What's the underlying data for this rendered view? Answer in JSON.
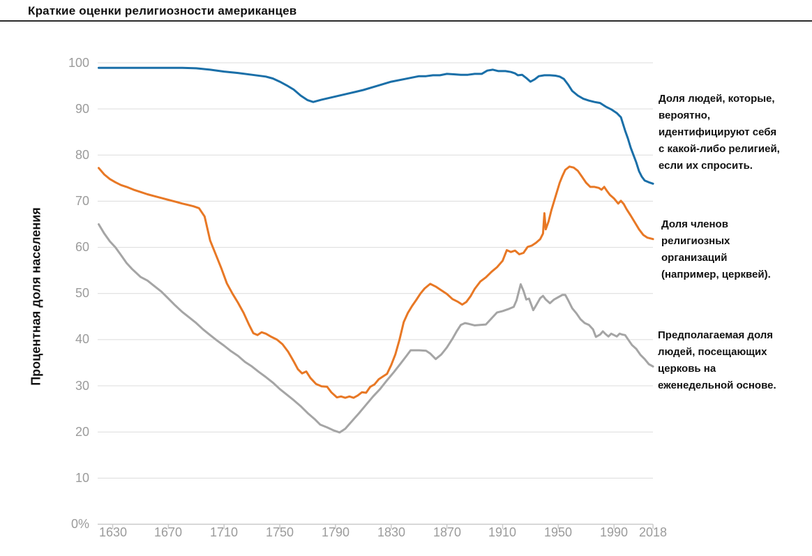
{
  "page": {
    "title": "Краткие оценки религиозности американцев"
  },
  "chart_data": {
    "type": "line",
    "title": "Краткие оценки религиозности американцев",
    "ylabel": "Процентная доля населения",
    "xlabel": "",
    "xlim": [
      1618,
      2020
    ],
    "ylim": [
      0,
      100
    ],
    "grid": true,
    "legend_position": "right-annotations",
    "y_ticks": [
      100,
      90,
      80,
      70,
      60,
      50,
      40,
      30,
      20,
      10
    ],
    "y_zero_label": "0%",
    "x_ticks": [
      1630,
      1670,
      1710,
      1750,
      1790,
      1830,
      1870,
      1910,
      1950,
      1990,
      2018
    ],
    "colors": {
      "grid": "#dcdcdc",
      "axis": "#c9c9c9",
      "tick_text": "#9b9b9b",
      "title_text": "#111111",
      "identification_line": "#1a6fa8",
      "membership_line": "#e87825",
      "attendance_line": "#a5a5a5"
    },
    "series": [
      {
        "name": "religious-identification",
        "label": "Доля людей, которые, вероятно, идентифицируют себя с какой-либо религией, если их спросить.",
        "color": "#1a6fa8",
        "points": [
          [
            1620,
            98.9
          ],
          [
            1640,
            98.9
          ],
          [
            1660,
            98.9
          ],
          [
            1680,
            98.9
          ],
          [
            1690,
            98.8
          ],
          [
            1700,
            98.5
          ],
          [
            1710,
            98.1
          ],
          [
            1720,
            97.8
          ],
          [
            1730,
            97.4
          ],
          [
            1740,
            97.0
          ],
          [
            1745,
            96.6
          ],
          [
            1750,
            95.9
          ],
          [
            1755,
            95.1
          ],
          [
            1760,
            94.2
          ],
          [
            1765,
            92.9
          ],
          [
            1770,
            91.9
          ],
          [
            1774,
            91.5
          ],
          [
            1780,
            92.0
          ],
          [
            1790,
            92.7
          ],
          [
            1800,
            93.4
          ],
          [
            1810,
            94.1
          ],
          [
            1820,
            95.0
          ],
          [
            1830,
            95.9
          ],
          [
            1840,
            96.5
          ],
          [
            1850,
            97.1
          ],
          [
            1855,
            97.1
          ],
          [
            1860,
            97.3
          ],
          [
            1865,
            97.3
          ],
          [
            1870,
            97.6
          ],
          [
            1875,
            97.5
          ],
          [
            1880,
            97.4
          ],
          [
            1885,
            97.4
          ],
          [
            1890,
            97.6
          ],
          [
            1895,
            97.6
          ],
          [
            1899,
            98.3
          ],
          [
            1903,
            98.5
          ],
          [
            1907,
            98.2
          ],
          [
            1912,
            98.2
          ],
          [
            1916,
            98.0
          ],
          [
            1919,
            97.7
          ],
          [
            1921,
            97.3
          ],
          [
            1924,
            97.4
          ],
          [
            1927,
            96.7
          ],
          [
            1930,
            95.9
          ],
          [
            1933,
            96.4
          ],
          [
            1936,
            97.1
          ],
          [
            1940,
            97.3
          ],
          [
            1944,
            97.3
          ],
          [
            1948,
            97.2
          ],
          [
            1951,
            97.0
          ],
          [
            1954,
            96.5
          ],
          [
            1957,
            95.3
          ],
          [
            1960,
            93.9
          ],
          [
            1964,
            92.9
          ],
          [
            1968,
            92.2
          ],
          [
            1972,
            91.8
          ],
          [
            1976,
            91.5
          ],
          [
            1980,
            91.3
          ],
          [
            1984,
            90.5
          ],
          [
            1988,
            89.9
          ],
          [
            1992,
            89.1
          ],
          [
            1995,
            88.2
          ],
          [
            1998,
            85.3
          ],
          [
            2000,
            83.6
          ],
          [
            2002,
            81.6
          ],
          [
            2004,
            80.0
          ],
          [
            2006,
            78.4
          ],
          [
            2008,
            76.5
          ],
          [
            2010,
            75.3
          ],
          [
            2012,
            74.5
          ],
          [
            2015,
            74.1
          ],
          [
            2018,
            73.8
          ]
        ]
      },
      {
        "name": "membership",
        "label": "Доля членов религиозных организаций (например, церквей).",
        "color": "#e87825",
        "points": [
          [
            1620,
            77.2
          ],
          [
            1624,
            75.8
          ],
          [
            1628,
            74.8
          ],
          [
            1632,
            74.1
          ],
          [
            1636,
            73.5
          ],
          [
            1640,
            73.1
          ],
          [
            1645,
            72.5
          ],
          [
            1650,
            72.0
          ],
          [
            1655,
            71.5
          ],
          [
            1660,
            71.1
          ],
          [
            1665,
            70.7
          ],
          [
            1670,
            70.3
          ],
          [
            1675,
            69.9
          ],
          [
            1680,
            69.5
          ],
          [
            1684,
            69.2
          ],
          [
            1688,
            68.9
          ],
          [
            1692,
            68.5
          ],
          [
            1696,
            66.7
          ],
          [
            1700,
            61.5
          ],
          [
            1704,
            58.5
          ],
          [
            1708,
            55.5
          ],
          [
            1712,
            52.2
          ],
          [
            1716,
            50.0
          ],
          [
            1720,
            48.0
          ],
          [
            1724,
            45.8
          ],
          [
            1728,
            43.2
          ],
          [
            1731,
            41.4
          ],
          [
            1734,
            41.0
          ],
          [
            1737,
            41.6
          ],
          [
            1740,
            41.3
          ],
          [
            1744,
            40.6
          ],
          [
            1748,
            40.0
          ],
          [
            1752,
            39.0
          ],
          [
            1756,
            37.4
          ],
          [
            1760,
            35.3
          ],
          [
            1763,
            33.6
          ],
          [
            1766,
            32.7
          ],
          [
            1769,
            33.1
          ],
          [
            1772,
            31.7
          ],
          [
            1776,
            30.4
          ],
          [
            1780,
            29.9
          ],
          [
            1784,
            29.8
          ],
          [
            1787,
            28.6
          ],
          [
            1791,
            27.5
          ],
          [
            1794,
            27.7
          ],
          [
            1797,
            27.4
          ],
          [
            1800,
            27.7
          ],
          [
            1803,
            27.4
          ],
          [
            1806,
            27.9
          ],
          [
            1809,
            28.6
          ],
          [
            1812,
            28.5
          ],
          [
            1815,
            29.8
          ],
          [
            1818,
            30.3
          ],
          [
            1821,
            31.4
          ],
          [
            1824,
            32.0
          ],
          [
            1827,
            32.6
          ],
          [
            1830,
            34.5
          ],
          [
            1833,
            36.8
          ],
          [
            1836,
            40.0
          ],
          [
            1839,
            43.8
          ],
          [
            1842,
            45.8
          ],
          [
            1845,
            47.3
          ],
          [
            1848,
            48.6
          ],
          [
            1851,
            50.0
          ],
          [
            1854,
            51.1
          ],
          [
            1858,
            52.1
          ],
          [
            1862,
            51.5
          ],
          [
            1866,
            50.7
          ],
          [
            1870,
            49.9
          ],
          [
            1874,
            48.8
          ],
          [
            1878,
            48.2
          ],
          [
            1881,
            47.6
          ],
          [
            1884,
            48.2
          ],
          [
            1887,
            49.4
          ],
          [
            1890,
            51.0
          ],
          [
            1894,
            52.6
          ],
          [
            1898,
            53.5
          ],
          [
            1902,
            54.7
          ],
          [
            1906,
            55.7
          ],
          [
            1910,
            57.1
          ],
          [
            1913,
            59.4
          ],
          [
            1916,
            59.0
          ],
          [
            1919,
            59.3
          ],
          [
            1922,
            58.5
          ],
          [
            1925,
            58.8
          ],
          [
            1928,
            60.1
          ],
          [
            1931,
            60.4
          ],
          [
            1934,
            61.0
          ],
          [
            1937,
            61.8
          ],
          [
            1939,
            63.0
          ],
          [
            1940,
            67.4
          ],
          [
            1941,
            63.9
          ],
          [
            1943,
            65.6
          ],
          [
            1945,
            68.0
          ],
          [
            1947,
            70.0
          ],
          [
            1949,
            72.0
          ],
          [
            1951,
            74.0
          ],
          [
            1953,
            75.5
          ],
          [
            1955,
            76.8
          ],
          [
            1958,
            77.5
          ],
          [
            1961,
            77.3
          ],
          [
            1964,
            76.6
          ],
          [
            1967,
            75.3
          ],
          [
            1970,
            74.0
          ],
          [
            1973,
            73.1
          ],
          [
            1976,
            73.1
          ],
          [
            1979,
            72.9
          ],
          [
            1981,
            72.5
          ],
          [
            1983,
            73.1
          ],
          [
            1985,
            72.2
          ],
          [
            1987,
            71.4
          ],
          [
            1990,
            70.6
          ],
          [
            1993,
            69.5
          ],
          [
            1995,
            70.1
          ],
          [
            1997,
            69.4
          ],
          [
            1999,
            68.3
          ],
          [
            2002,
            66.9
          ],
          [
            2005,
            65.4
          ],
          [
            2008,
            63.9
          ],
          [
            2011,
            62.7
          ],
          [
            2014,
            62.1
          ],
          [
            2018,
            61.8
          ]
        ]
      },
      {
        "name": "weekly-attendance",
        "label": "Предполагаемая доля людей, посещающих церковь на еженедельной основе.",
        "color": "#a5a5a5",
        "points": [
          [
            1620,
            65.0
          ],
          [
            1624,
            63.0
          ],
          [
            1628,
            61.3
          ],
          [
            1632,
            60.0
          ],
          [
            1636,
            58.3
          ],
          [
            1640,
            56.6
          ],
          [
            1644,
            55.3
          ],
          [
            1650,
            53.6
          ],
          [
            1655,
            52.8
          ],
          [
            1660,
            51.6
          ],
          [
            1665,
            50.4
          ],
          [
            1670,
            48.9
          ],
          [
            1675,
            47.4
          ],
          [
            1680,
            46.0
          ],
          [
            1685,
            44.8
          ],
          [
            1690,
            43.6
          ],
          [
            1695,
            42.2
          ],
          [
            1700,
            41.0
          ],
          [
            1705,
            39.8
          ],
          [
            1710,
            38.7
          ],
          [
            1715,
            37.5
          ],
          [
            1720,
            36.5
          ],
          [
            1725,
            35.2
          ],
          [
            1730,
            34.2
          ],
          [
            1735,
            33.0
          ],
          [
            1740,
            31.9
          ],
          [
            1745,
            30.7
          ],
          [
            1750,
            29.3
          ],
          [
            1755,
            28.1
          ],
          [
            1760,
            26.9
          ],
          [
            1765,
            25.6
          ],
          [
            1770,
            24.1
          ],
          [
            1775,
            22.8
          ],
          [
            1779,
            21.6
          ],
          [
            1784,
            21.0
          ],
          [
            1789,
            20.3
          ],
          [
            1793,
            19.9
          ],
          [
            1797,
            20.7
          ],
          [
            1802,
            22.4
          ],
          [
            1807,
            24.1
          ],
          [
            1812,
            25.9
          ],
          [
            1817,
            27.7
          ],
          [
            1822,
            29.3
          ],
          [
            1827,
            31.2
          ],
          [
            1832,
            33.0
          ],
          [
            1837,
            34.9
          ],
          [
            1841,
            36.5
          ],
          [
            1844,
            37.7
          ],
          [
            1850,
            37.7
          ],
          [
            1855,
            37.6
          ],
          [
            1858,
            37.0
          ],
          [
            1862,
            35.8
          ],
          [
            1866,
            36.8
          ],
          [
            1870,
            38.3
          ],
          [
            1874,
            40.2
          ],
          [
            1877,
            41.8
          ],
          [
            1880,
            43.2
          ],
          [
            1883,
            43.6
          ],
          [
            1886,
            43.4
          ],
          [
            1890,
            43.1
          ],
          [
            1894,
            43.2
          ],
          [
            1898,
            43.3
          ],
          [
            1902,
            44.6
          ],
          [
            1906,
            45.9
          ],
          [
            1910,
            46.2
          ],
          [
            1914,
            46.6
          ],
          [
            1918,
            47.1
          ],
          [
            1920,
            48.5
          ],
          [
            1923,
            52.0
          ],
          [
            1925,
            50.6
          ],
          [
            1927,
            48.7
          ],
          [
            1929,
            48.9
          ],
          [
            1932,
            46.4
          ],
          [
            1934,
            47.4
          ],
          [
            1937,
            49.0
          ],
          [
            1939,
            49.5
          ],
          [
            1941,
            48.7
          ],
          [
            1944,
            47.9
          ],
          [
            1947,
            48.7
          ],
          [
            1950,
            49.2
          ],
          [
            1953,
            49.7
          ],
          [
            1955,
            49.7
          ],
          [
            1957,
            48.6
          ],
          [
            1960,
            46.8
          ],
          [
            1963,
            45.7
          ],
          [
            1966,
            44.4
          ],
          [
            1969,
            43.6
          ],
          [
            1972,
            43.2
          ],
          [
            1975,
            42.2
          ],
          [
            1977,
            40.6
          ],
          [
            1980,
            41.1
          ],
          [
            1982,
            41.8
          ],
          [
            1984,
            41.2
          ],
          [
            1986,
            40.7
          ],
          [
            1988,
            41.3
          ],
          [
            1990,
            41.0
          ],
          [
            1992,
            40.7
          ],
          [
            1994,
            41.3
          ],
          [
            1996,
            41.1
          ],
          [
            1998,
            41.0
          ],
          [
            2000,
            40.1
          ],
          [
            2003,
            38.8
          ],
          [
            2006,
            38.0
          ],
          [
            2009,
            36.7
          ],
          [
            2012,
            35.8
          ],
          [
            2015,
            34.7
          ],
          [
            2018,
            34.2
          ]
        ]
      }
    ]
  }
}
